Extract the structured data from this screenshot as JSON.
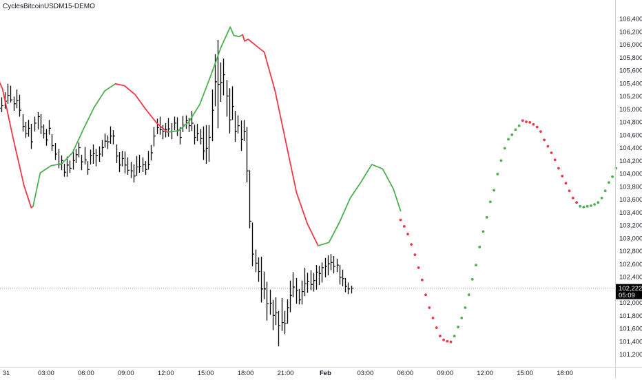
{
  "symbol": "CyclesBitcoinUSDM15-DEMO",
  "price_label": "102,222",
  "countdown": "05:09",
  "colors": {
    "bar": "#000000",
    "cycle_up": "#4caf50",
    "cycle_down": "#f23645",
    "price_label_bg": "#000000",
    "price_line": "#9598a1",
    "axis_border": "#d1d4dc",
    "text": "#131722"
  },
  "chart_data": {
    "type": "line",
    "title": "",
    "x_ticks": [
      "31",
      "03:00",
      "06:00",
      "09:00",
      "12:00",
      "15:00",
      "18:00",
      "21:00",
      "Feb",
      "03:00",
      "06:00",
      "09:00",
      "12:00",
      "15:00",
      "18:00"
    ],
    "y_ticks": [
      101200,
      101400,
      101600,
      101800,
      102000,
      102200,
      102400,
      102600,
      102800,
      103000,
      103200,
      103400,
      103600,
      103800,
      104000,
      104200,
      104400,
      104600,
      104800,
      105000,
      105200,
      105400,
      105600,
      105800,
      106000,
      106200,
      106400
    ],
    "y_tick_labels": [
      "101,200",
      "101,400",
      "101,600",
      "101,800",
      "102,000",
      "102,200",
      "102,400",
      "102,600",
      "102,800",
      "103,000",
      "103,200",
      "103,400",
      "103,600",
      "103,800",
      "104,000",
      "104,200",
      "104,400",
      "104,600",
      "104,800",
      "105,000",
      "105,200",
      "105,400",
      "105,600",
      "105,800",
      "106,000",
      "106,200",
      "106,400"
    ],
    "ylim": [
      101100,
      106450
    ],
    "x_unit": "hours since 31 Jan 00:00",
    "xlim": [
      -1,
      40.85
    ],
    "last_price": 102222,
    "price_bars": [
      [
        -0.81,
        105280,
        104910,
        105060
      ],
      [
        -0.55,
        105120,
        104930,
        105010
      ],
      [
        -0.34,
        105180,
        104950,
        105050
      ],
      [
        -0.12,
        105260,
        105000,
        105120
      ],
      [
        0.09,
        105390,
        105080,
        105210
      ],
      [
        0.31,
        105360,
        105100,
        105140
      ],
      [
        0.55,
        105190,
        104970,
        105080
      ],
      [
        0.8,
        105300,
        105010,
        105130
      ],
      [
        1.0,
        105220,
        104880,
        104980
      ],
      [
        1.25,
        104920,
        104650,
        104730
      ],
      [
        1.47,
        104800,
        104550,
        104620
      ],
      [
        1.68,
        104830,
        104570,
        104700
      ],
      [
        1.89,
        104770,
        104380,
        104490
      ],
      [
        2.12,
        104880,
        104650,
        104780
      ],
      [
        2.36,
        104950,
        104680,
        104880
      ],
      [
        2.58,
        104920,
        104610,
        104720
      ],
      [
        2.79,
        104760,
        104540,
        104620
      ],
      [
        3.01,
        104690,
        104430,
        104520
      ],
      [
        3.23,
        104830,
        104600,
        104700
      ],
      [
        3.44,
        104610,
        104350,
        104430
      ],
      [
        3.68,
        104470,
        104210,
        104300
      ],
      [
        3.93,
        104380,
        104080,
        104140
      ],
      [
        4.13,
        104280,
        104050,
        104200
      ],
      [
        4.35,
        104150,
        103950,
        104020
      ],
      [
        4.56,
        104260,
        103950,
        104130
      ],
      [
        4.78,
        104200,
        104010,
        104080
      ],
      [
        5.0,
        104370,
        104060,
        104200
      ],
      [
        5.22,
        104380,
        104160,
        104290
      ],
      [
        5.44,
        104480,
        104250,
        104400
      ],
      [
        5.66,
        104290,
        104050,
        104180
      ],
      [
        5.88,
        104410,
        104140,
        104210
      ],
      [
        6.09,
        104190,
        103980,
        104060
      ],
      [
        6.31,
        104370,
        104140,
        104280
      ],
      [
        6.53,
        104450,
        104150,
        104310
      ],
      [
        6.75,
        104380,
        104110,
        104280
      ],
      [
        6.97,
        104420,
        104180,
        104300
      ],
      [
        7.18,
        104520,
        104260,
        104400
      ],
      [
        7.4,
        104620,
        104400,
        104500
      ],
      [
        7.62,
        104590,
        104380,
        104490
      ],
      [
        7.83,
        104730,
        104460,
        104580
      ],
      [
        8.05,
        104670,
        104450,
        104580
      ],
      [
        8.27,
        104450,
        104160,
        104270
      ],
      [
        8.49,
        104330,
        104020,
        104130
      ],
      [
        8.7,
        104350,
        104110,
        104230
      ],
      [
        8.92,
        104340,
        104000,
        104130
      ],
      [
        9.14,
        104250,
        103980,
        104050
      ],
      [
        9.36,
        104180,
        103930,
        104040
      ],
      [
        9.57,
        104140,
        103860,
        103960
      ],
      [
        9.79,
        104270,
        103960,
        104100
      ],
      [
        10.01,
        104290,
        104010,
        104110
      ],
      [
        10.23,
        104250,
        104020,
        104140
      ],
      [
        10.45,
        104190,
        103980,
        104060
      ],
      [
        10.66,
        104350,
        104060,
        104140
      ],
      [
        10.88,
        104440,
        104200,
        104320
      ],
      [
        11.1,
        104720,
        104420,
        104580
      ],
      [
        11.32,
        104850,
        104610,
        104710
      ],
      [
        11.54,
        104880,
        104600,
        104680
      ],
      [
        11.75,
        104750,
        104530,
        104650
      ],
      [
        11.97,
        104780,
        104560,
        104680
      ],
      [
        12.19,
        104860,
        104570,
        104690
      ],
      [
        12.41,
        104780,
        104530,
        104650
      ],
      [
        12.62,
        104880,
        104670,
        104780
      ],
      [
        12.84,
        104870,
        104580,
        104670
      ],
      [
        13.06,
        104720,
        104450,
        104560
      ],
      [
        13.28,
        104890,
        104640,
        104750
      ],
      [
        13.5,
        104900,
        104690,
        104820
      ],
      [
        13.71,
        104860,
        104640,
        104740
      ],
      [
        13.93,
        104970,
        104660,
        104780
      ],
      [
        14.15,
        104760,
        104450,
        104560
      ],
      [
        14.37,
        104770,
        104500,
        104620
      ],
      [
        14.59,
        104690,
        104450,
        104540
      ],
      [
        14.8,
        104730,
        104210,
        104350
      ],
      [
        15.02,
        104750,
        104150,
        104390
      ],
      [
        15.24,
        104750,
        104180,
        104560
      ],
      [
        15.46,
        105300,
        104500,
        104980
      ],
      [
        15.68,
        105850,
        105040,
        105420
      ],
      [
        15.89,
        106070,
        104700,
        105380
      ],
      [
        16.11,
        105720,
        105110,
        105410
      ],
      [
        16.33,
        105780,
        105210,
        105530
      ],
      [
        16.55,
        105450,
        104880,
        105200
      ],
      [
        16.76,
        105320,
        104620,
        104830
      ],
      [
        16.98,
        105350,
        104830,
        105040
      ],
      [
        17.2,
        104970,
        104490,
        104650
      ],
      [
        17.42,
        104900,
        104620,
        104740
      ],
      [
        17.64,
        104820,
        104350,
        104530
      ],
      [
        17.86,
        104830,
        104500,
        104650
      ],
      [
        18.07,
        104720,
        103860,
        104040
      ],
      [
        18.29,
        104050,
        103150,
        103260
      ],
      [
        18.51,
        103240,
        102560,
        102750
      ],
      [
        18.73,
        102820,
        102470,
        102610
      ],
      [
        18.94,
        102700,
        102320,
        102480
      ],
      [
        19.16,
        102710,
        102000,
        102210
      ],
      [
        19.38,
        102480,
        102050,
        102210
      ],
      [
        19.6,
        102320,
        101720,
        101980
      ],
      [
        19.82,
        102200,
        101810,
        101990
      ],
      [
        20.04,
        102040,
        101570,
        101800
      ],
      [
        20.25,
        102080,
        101650,
        101840
      ],
      [
        20.47,
        101870,
        101320,
        101640
      ],
      [
        20.69,
        102070,
        101560,
        101690
      ],
      [
        20.91,
        101870,
        101510,
        101680
      ],
      [
        21.13,
        102050,
        101670,
        101920
      ],
      [
        21.34,
        102340,
        101850,
        102110
      ],
      [
        21.56,
        102470,
        102080,
        102240
      ],
      [
        21.78,
        102380,
        101980,
        102190
      ],
      [
        22.0,
        102210,
        101970,
        102040
      ],
      [
        22.22,
        102340,
        101970,
        102170
      ],
      [
        22.43,
        102540,
        102100,
        102290
      ],
      [
        22.65,
        102460,
        102150,
        102330
      ],
      [
        22.87,
        102500,
        102190,
        102280
      ],
      [
        23.09,
        102460,
        102170,
        102340
      ],
      [
        23.31,
        102580,
        102200,
        102470
      ],
      [
        23.53,
        102570,
        102270,
        102450
      ],
      [
        23.74,
        102620,
        102310,
        102540
      ],
      [
        23.96,
        102690,
        102390,
        102560
      ],
      [
        24.18,
        102730,
        102420,
        102600
      ],
      [
        24.4,
        102750,
        102500,
        102620
      ],
      [
        24.62,
        102720,
        102450,
        102560
      ],
      [
        24.84,
        102680,
        102470,
        102580
      ],
      [
        25.05,
        102580,
        102280,
        102390
      ],
      [
        25.27,
        102510,
        102250,
        102370
      ],
      [
        25.49,
        102380,
        102160,
        102250
      ],
      [
        25.71,
        102310,
        102130,
        102210
      ],
      [
        25.93,
        102260,
        102140,
        102222
      ]
    ],
    "series": [
      {
        "color_key": "cycle_down",
        "style": "line",
        "points": [
          [
            -1.09,
            105700
          ],
          [
            -0.28,
            105310
          ],
          [
            0.53,
            104540
          ],
          [
            1.34,
            103810
          ],
          [
            1.88,
            103470
          ],
          [
            2.02,
            103490
          ]
        ]
      },
      {
        "color_key": "cycle_up",
        "style": "line",
        "points": [
          [
            2.02,
            103490
          ],
          [
            2.56,
            104010
          ],
          [
            3.37,
            104120
          ],
          [
            4.18,
            104150
          ],
          [
            4.98,
            104320
          ],
          [
            5.79,
            104680
          ],
          [
            6.6,
            105020
          ],
          [
            7.41,
            105280
          ],
          [
            8.22,
            105390
          ]
        ]
      },
      {
        "color_key": "cycle_down",
        "style": "line",
        "points": [
          [
            8.22,
            105390
          ],
          [
            8.89,
            105360
          ],
          [
            9.7,
            105220
          ],
          [
            10.51,
            104990
          ],
          [
            11.32,
            104780
          ],
          [
            12.12,
            104640
          ]
        ]
      },
      {
        "color_key": "cycle_up",
        "style": "line",
        "points": [
          [
            12.12,
            104640
          ],
          [
            12.93,
            104660
          ],
          [
            13.74,
            104800
          ],
          [
            14.55,
            105070
          ],
          [
            15.35,
            105500
          ],
          [
            16.16,
            105960
          ],
          [
            16.84,
            106270
          ],
          [
            17.11,
            106140
          ],
          [
            17.51,
            106120
          ],
          [
            17.78,
            106150
          ]
        ]
      },
      {
        "color_key": "cycle_down",
        "style": "line",
        "points": [
          [
            17.78,
            106150
          ],
          [
            17.92,
            106050
          ],
          [
            18.19,
            106080
          ],
          [
            18.73,
            105990
          ],
          [
            19.4,
            105880
          ],
          [
            20.21,
            105280
          ],
          [
            21.02,
            104490
          ],
          [
            21.83,
            103700
          ],
          [
            22.64,
            103220
          ],
          [
            23.45,
            102880
          ]
        ]
      },
      {
        "color_key": "cycle_up",
        "style": "line",
        "points": [
          [
            23.45,
            102880
          ],
          [
            24.26,
            102930
          ],
          [
            25.07,
            103250
          ],
          [
            25.87,
            103620
          ],
          [
            26.68,
            103870
          ],
          [
            27.49,
            104140
          ],
          [
            28.3,
            104070
          ],
          [
            29.11,
            103760
          ],
          [
            29.65,
            103420
          ]
        ]
      },
      {
        "color_key": "cycle_down",
        "style": "dots",
        "points": [
          [
            29.65,
            103280
          ],
          [
            29.92,
            103180
          ],
          [
            30.19,
            103060
          ],
          [
            30.46,
            102900
          ],
          [
            30.73,
            102740
          ],
          [
            31.0,
            102540
          ],
          [
            31.27,
            102350
          ],
          [
            31.54,
            102120
          ],
          [
            31.81,
            101920
          ],
          [
            32.08,
            101760
          ],
          [
            32.35,
            101610
          ],
          [
            32.62,
            101480
          ],
          [
            32.89,
            101420
          ],
          [
            33.16,
            101400
          ],
          [
            33.43,
            101390
          ]
        ]
      },
      {
        "color_key": "cycle_up",
        "style": "dots",
        "points": [
          [
            33.7,
            101480
          ],
          [
            33.97,
            101620
          ],
          [
            34.24,
            101760
          ],
          [
            34.51,
            101920
          ],
          [
            34.78,
            102120
          ],
          [
            35.05,
            102360
          ],
          [
            35.32,
            102580
          ],
          [
            35.59,
            102860
          ],
          [
            35.86,
            103100
          ],
          [
            36.13,
            103320
          ],
          [
            36.4,
            103560
          ],
          [
            36.67,
            103740
          ],
          [
            36.94,
            103990
          ],
          [
            37.21,
            104200
          ],
          [
            37.48,
            104390
          ],
          [
            37.75,
            104530
          ],
          [
            38.02,
            104600
          ],
          [
            38.29,
            104680
          ],
          [
            38.56,
            104740
          ]
        ]
      },
      {
        "color_key": "cycle_down",
        "style": "dots",
        "points": [
          [
            38.83,
            104820
          ],
          [
            39.1,
            104800
          ],
          [
            39.37,
            104790
          ],
          [
            39.64,
            104760
          ],
          [
            39.91,
            104720
          ],
          [
            40.18,
            104650
          ],
          [
            40.45,
            104520
          ],
          [
            40.72,
            104420
          ],
          [
            40.99,
            104320
          ],
          [
            41.26,
            104210
          ],
          [
            41.53,
            104080
          ],
          [
            41.8,
            103960
          ],
          [
            42.07,
            103850
          ],
          [
            42.34,
            103730
          ],
          [
            42.61,
            103620
          ],
          [
            42.88,
            103550
          ]
        ]
      },
      {
        "color_key": "cycle_up",
        "style": "dots",
        "points": [
          [
            43.15,
            103490
          ],
          [
            43.42,
            103480
          ],
          [
            43.69,
            103490
          ],
          [
            43.96,
            103500
          ],
          [
            44.23,
            103520
          ],
          [
            44.5,
            103550
          ],
          [
            44.77,
            103620
          ],
          [
            45.04,
            103730
          ],
          [
            45.31,
            103860
          ],
          [
            45.58,
            103950
          ],
          [
            45.85,
            104080
          ]
        ]
      }
    ]
  }
}
